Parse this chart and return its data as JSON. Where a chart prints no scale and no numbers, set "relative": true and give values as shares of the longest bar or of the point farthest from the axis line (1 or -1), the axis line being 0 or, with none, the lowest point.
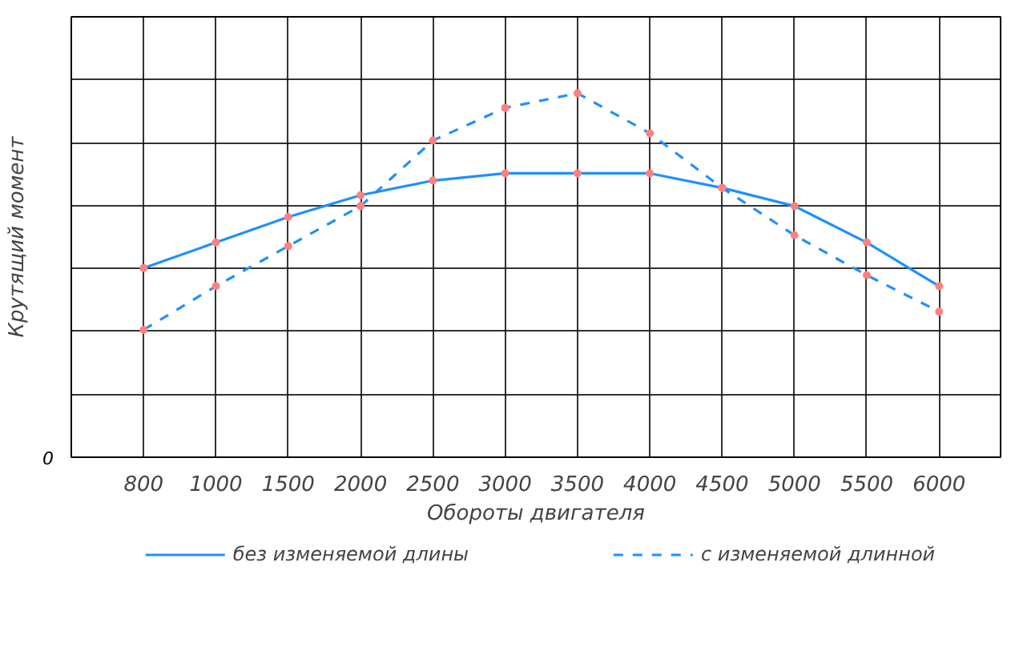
{
  "chart_data": {
    "type": "line",
    "relative": true,
    "xlabel": "Обороты двигателя",
    "ylabel": "Крутящий момент",
    "annotations": [
      "0"
    ],
    "categories": [
      "800",
      "1000",
      "1500",
      "2000",
      "2500",
      "3000",
      "3500",
      "4000",
      "4500",
      "5000",
      "5500",
      "6000"
    ],
    "series": [
      {
        "name": "без изменяемой длины",
        "color": "#1e90ff",
        "line_style": "solid",
        "values": [
          0.52,
          0.59,
          0.66,
          0.72,
          0.76,
          0.78,
          0.78,
          0.78,
          0.74,
          0.69,
          0.59,
          0.47
        ]
      },
      {
        "name": "с изменяемой длинной",
        "color": "#1e90ff",
        "line_style": "dashed",
        "values": [
          0.35,
          0.47,
          0.58,
          0.69,
          0.87,
          0.96,
          1,
          0.89,
          0.74,
          0.61,
          0.5,
          0.4
        ]
      }
    ],
    "marker": "circle",
    "grid": true,
    "legend": "bottom"
  }
}
